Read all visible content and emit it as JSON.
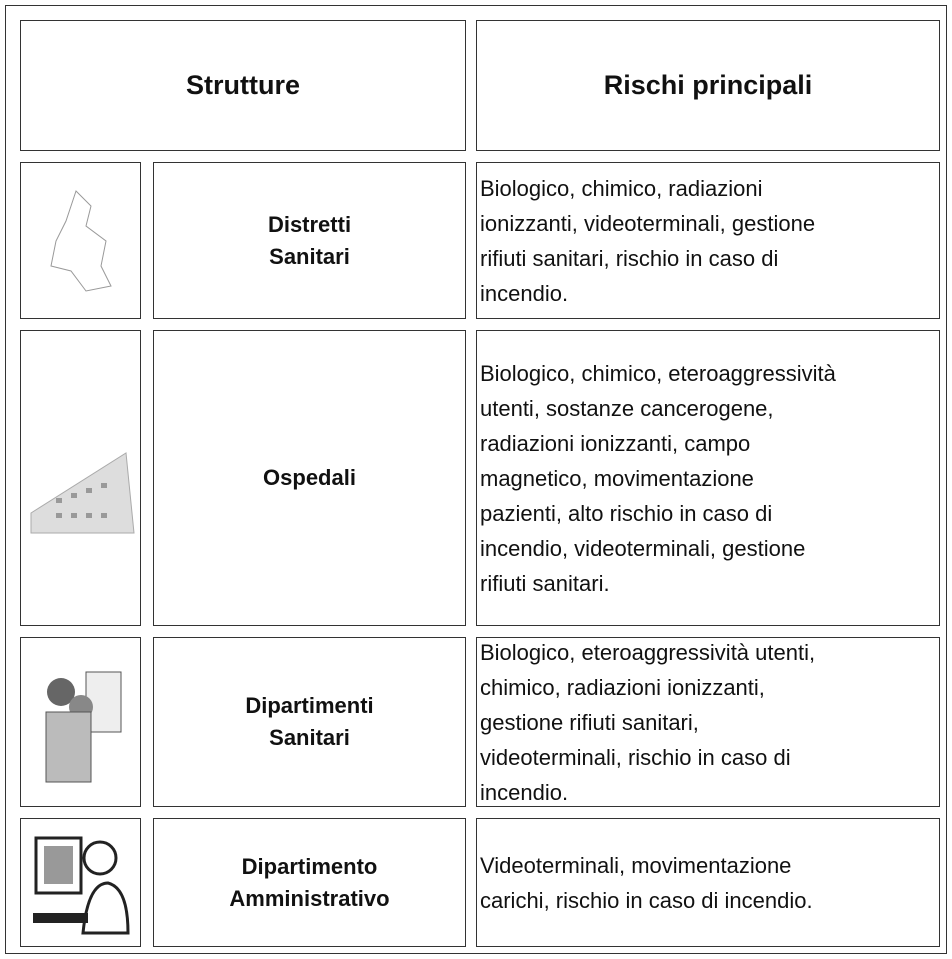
{
  "table": {
    "header": [
      "Strutture",
      "Rischi principali"
    ],
    "rows": [
      {
        "name": [
          "Distretti",
          "Sanitari"
        ],
        "risks": [
          "Biologico, chimico, radiazioni",
          "ionizzanti, videoterminali, gestione",
          "rifiuti sanitari,  rischio in caso di",
          "incendio."
        ]
      },
      {
        "name": [
          "Ospedali"
        ],
        "risks": [
          "Biologico, chimico,  eteroaggressività",
          "utenti, sostanze cancerogene,",
          "radiazioni ionizzanti, campo",
          "magnetico, movimentazione",
          "pazienti, alto rischio in caso di",
          "incendio, videoterminali, gestione",
          "rifiuti sanitari."
        ]
      },
      {
        "name": [
          "Dipartimenti",
          "Sanitari"
        ],
        "risks": [
          "Biologico, eteroaggressività utenti,",
          "chimico, radiazioni ionizzanti,",
          "gestione rifiuti sanitari,",
          "videoterminali, rischio in caso di",
          "incendio."
        ]
      },
      {
        "name": [
          "Dipartimento",
          "Amministrativo"
        ],
        "risks": [
          "Videoterminali, movimentazione",
          "carichi,  rischio in caso di incendio."
        ]
      }
    ]
  }
}
